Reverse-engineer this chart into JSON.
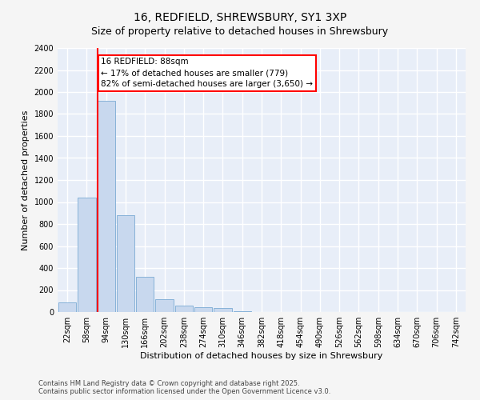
{
  "title": "16, REDFIELD, SHREWSBURY, SY1 3XP",
  "subtitle": "Size of property relative to detached houses in Shrewsbury",
  "xlabel": "Distribution of detached houses by size in Shrewsbury",
  "ylabel": "Number of detached properties",
  "categories": [
    "22sqm",
    "58sqm",
    "94sqm",
    "130sqm",
    "166sqm",
    "202sqm",
    "238sqm",
    "274sqm",
    "310sqm",
    "346sqm",
    "382sqm",
    "418sqm",
    "454sqm",
    "490sqm",
    "526sqm",
    "562sqm",
    "598sqm",
    "634sqm",
    "670sqm",
    "706sqm",
    "742sqm"
  ],
  "bar_heights": [
    90,
    1040,
    1920,
    880,
    320,
    115,
    55,
    42,
    35,
    10,
    0,
    0,
    0,
    0,
    0,
    0,
    0,
    0,
    0,
    0,
    0
  ],
  "bar_color": "#c8d8ee",
  "bar_edgecolor": "#7aaad4",
  "property_line_label": "16 REDFIELD: 88sqm",
  "annotation_line1": "← 17% of detached houses are smaller (779)",
  "annotation_line2": "82% of semi-detached houses are larger (3,650) →",
  "line_color": "red",
  "ylim": [
    0,
    2400
  ],
  "yticks": [
    0,
    200,
    400,
    600,
    800,
    1000,
    1200,
    1400,
    1600,
    1800,
    2000,
    2200,
    2400
  ],
  "footer_line1": "Contains HM Land Registry data © Crown copyright and database right 2025.",
  "footer_line2": "Contains public sector information licensed under the Open Government Licence v3.0.",
  "plot_bg_color": "#e8eef8",
  "fig_bg_color": "#f5f5f5",
  "grid_color": "#ffffff",
  "title_fontsize": 10,
  "subtitle_fontsize": 9,
  "axis_label_fontsize": 8,
  "tick_fontsize": 7,
  "annotation_fontsize": 7.5,
  "footer_fontsize": 6
}
